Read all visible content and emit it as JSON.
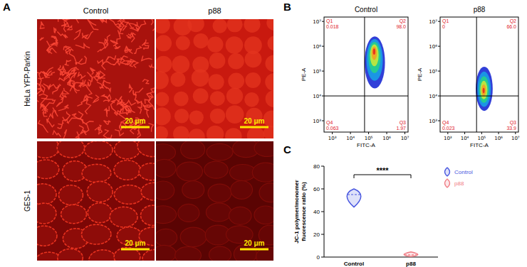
{
  "panel_labels": [
    "A",
    "B",
    "C"
  ],
  "image_panel": {
    "columns": [
      "Control",
      "p88"
    ],
    "rows": [
      "HeLa YFP-Parkin",
      "GES-1"
    ],
    "scale_bar": "20 μm"
  },
  "chart_data": [
    {
      "type": "flow_cytometry",
      "title": "Control",
      "xlabel": "FITC-A",
      "ylabel": "PE-A",
      "log": true,
      "xlim": [
        350,
        15000000
      ],
      "ylim": [
        350,
        15000000
      ],
      "xticks": [
        {
          "value": 1000,
          "label": "10³"
        },
        {
          "value": 10000,
          "label": "10⁴"
        },
        {
          "value": 100000,
          "label": "10⁵"
        },
        {
          "value": 1000000,
          "label": "10⁶"
        },
        {
          "value": 10000000,
          "label": "10⁷"
        }
      ],
      "yticks": [
        {
          "value": 1000,
          "label": "10³"
        },
        {
          "value": 10000,
          "label": "10⁴"
        },
        {
          "value": 100000,
          "label": "10⁵"
        },
        {
          "value": 1000000,
          "label": "10⁶"
        },
        {
          "value": 10000000,
          "label": "10⁷"
        }
      ],
      "gate": {
        "x": 60000,
        "y": 10000
      },
      "quadrants": [
        {
          "name": "Q1",
          "value": 0.018
        },
        {
          "name": "Q2",
          "value": 98.0,
          "label": "98.0"
        },
        {
          "name": "Q3",
          "value": 1.97
        },
        {
          "name": "Q4",
          "value": 0.063
        }
      ],
      "population": {
        "center": [
          200000,
          700000
        ],
        "x_range": [
          60000,
          800000
        ],
        "y_range": [
          20000,
          2500000
        ]
      }
    },
    {
      "type": "flow_cytometry",
      "title": "p88",
      "xlabel": "FITC-A",
      "ylabel": "PE-A",
      "log": true,
      "xlim": [
        350,
        15000000
      ],
      "ylim": [
        350,
        15000000
      ],
      "xticks": [
        {
          "value": 1000,
          "label": "10³"
        },
        {
          "value": 10000,
          "label": "10⁴"
        },
        {
          "value": 100000,
          "label": "10⁵"
        },
        {
          "value": 1000000,
          "label": "10⁶"
        },
        {
          "value": 10000000,
          "label": "10⁷"
        }
      ],
      "yticks": [
        {
          "value": 1000,
          "label": "10³"
        },
        {
          "value": 10000,
          "label": "10⁴"
        },
        {
          "value": 100000,
          "label": "10⁵"
        },
        {
          "value": 1000000,
          "label": "10⁶"
        },
        {
          "value": 10000000,
          "label": "10⁷"
        }
      ],
      "gate": {
        "x": 50000,
        "y": 10000
      },
      "quadrants": [
        {
          "name": "Q1",
          "value": 0
        },
        {
          "name": "Q2",
          "value": 66.0,
          "label": "66.0"
        },
        {
          "name": "Q3",
          "value": 33.9
        },
        {
          "name": "Q4",
          "value": 0.023
        }
      ],
      "population": {
        "center": [
          130000,
          16000
        ],
        "x_range": [
          45000,
          450000
        ],
        "y_range": [
          2500,
          150000
        ]
      }
    },
    {
      "type": "violin",
      "ylabel_lines": [
        "JC-1 polymer/monomer",
        "fluorescence ratio (%)"
      ],
      "ylim": [
        0,
        80
      ],
      "yticks": [
        0,
        20,
        40,
        60,
        80
      ],
      "categories": [
        "Control",
        "p88"
      ],
      "series": [
        {
          "name": "Control",
          "color": "#4a58e0",
          "median": 55,
          "min": 44,
          "max": 60
        },
        {
          "name": "p88",
          "color": "#f07c84",
          "median": 2,
          "min": 0.5,
          "max": 4.5
        }
      ],
      "legend": "right",
      "annotations": [
        {
          "text": "****"
        }
      ]
    }
  ]
}
